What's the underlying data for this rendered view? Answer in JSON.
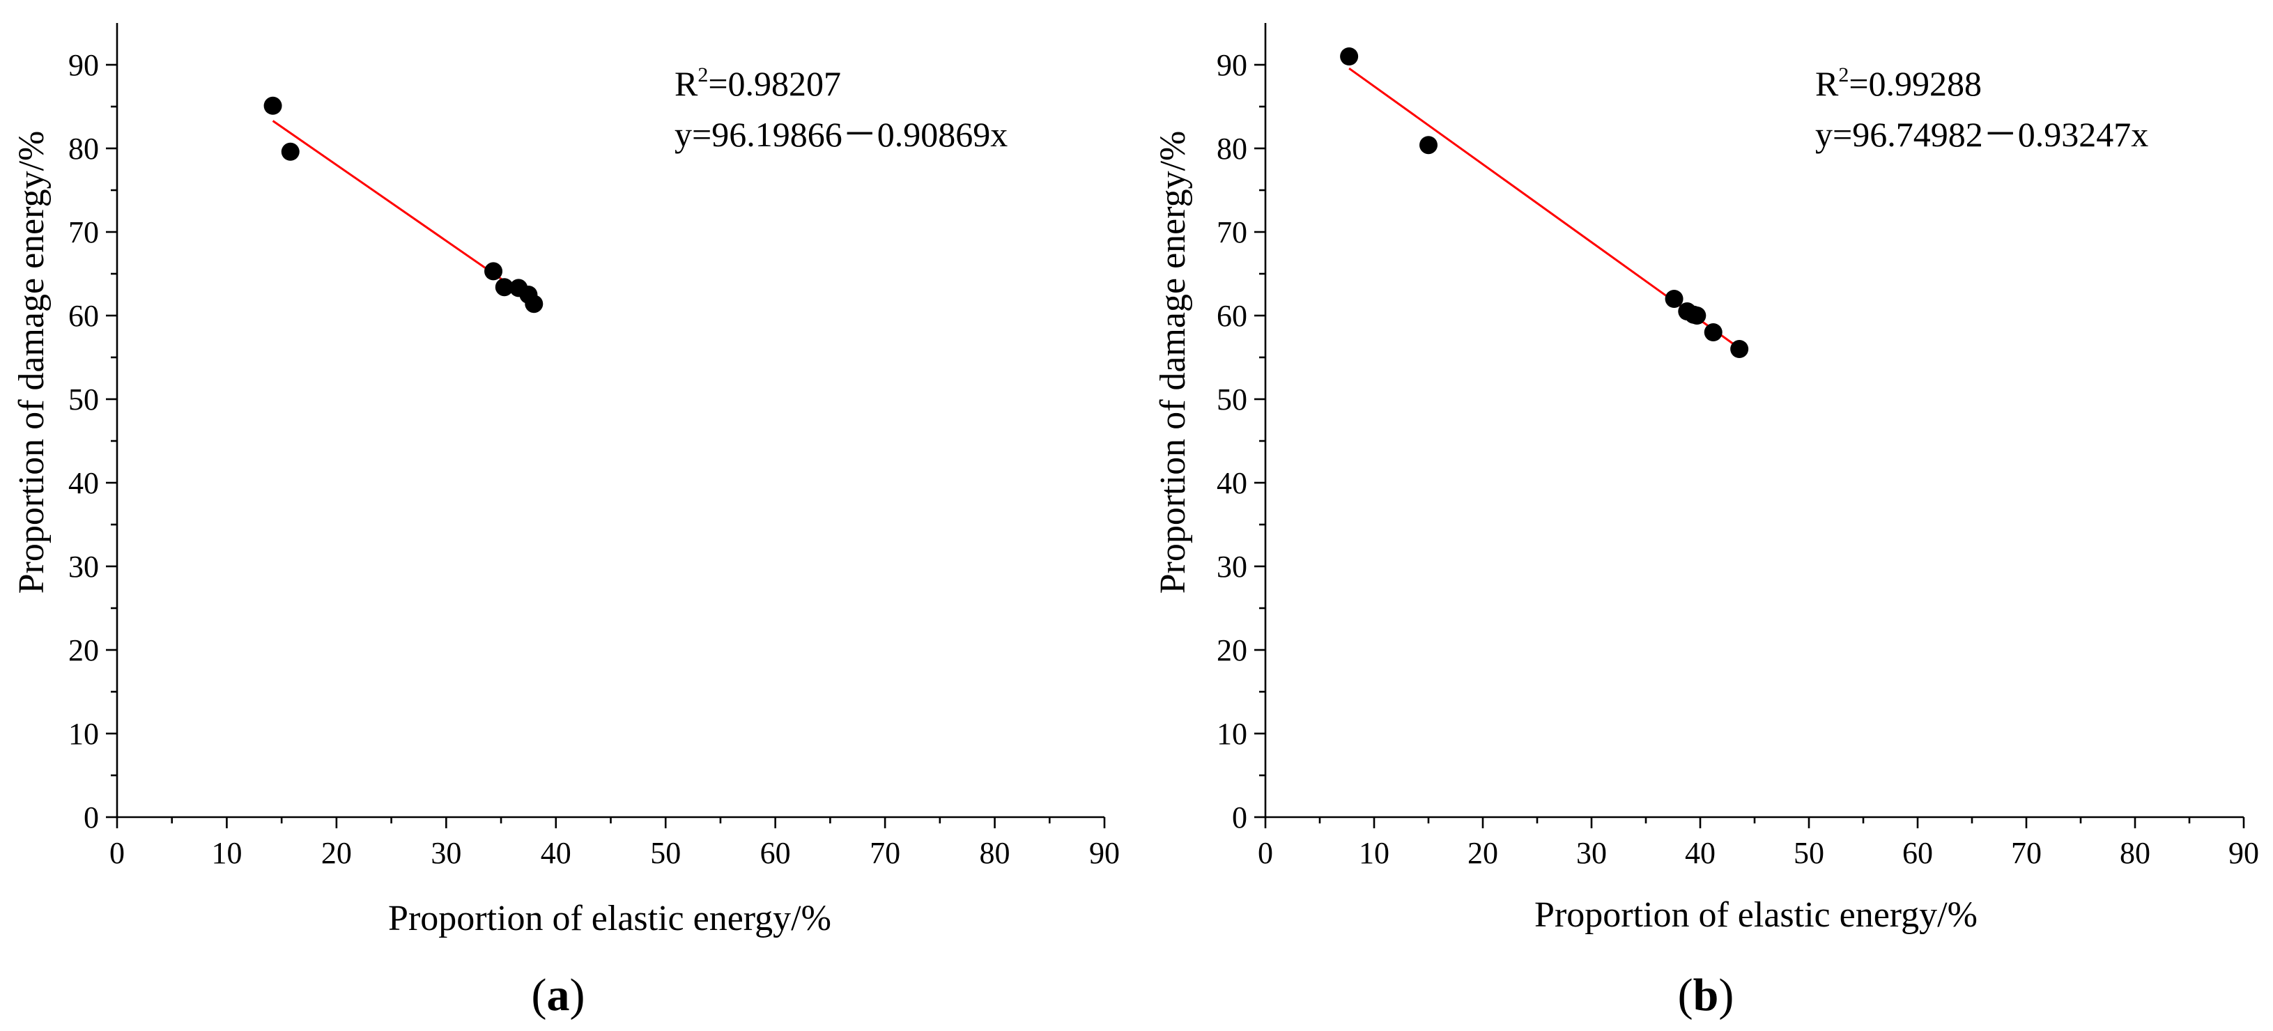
{
  "chart_data": [
    {
      "type": "scatter",
      "panel_label": "a",
      "xlabel": "Proportion of elastic energy/%",
      "ylabel": "Proportion of damage energy/%",
      "xlim": [
        0,
        90
      ],
      "ylim": [
        0,
        95
      ],
      "xticks": [
        0,
        10,
        20,
        30,
        40,
        50,
        60,
        70,
        80,
        90
      ],
      "yticks": [
        0,
        10,
        20,
        30,
        40,
        50,
        60,
        70,
        80,
        90
      ],
      "points": {
        "x": [
          14.2,
          15.8,
          34.3,
          35.3,
          36.6,
          37.5,
          38.0
        ],
        "y": [
          85.1,
          79.6,
          65.3,
          63.4,
          63.3,
          62.5,
          61.4
        ]
      },
      "fit": {
        "slope": -0.90869,
        "intercept": 96.19866,
        "x_range": [
          14.2,
          38.0
        ],
        "color": "#ff0000"
      },
      "r2_label": "R",
      "r2_exp": "2",
      "r2_value": "=0.98207",
      "equation": "y=96.19866－0.90869x"
    },
    {
      "type": "scatter",
      "panel_label": "b",
      "xlabel": "Proportion of elastic energy/%",
      "ylabel": "Proportion of damage energy/%",
      "xlim": [
        0,
        90
      ],
      "ylim": [
        0,
        95
      ],
      "xticks": [
        0,
        10,
        20,
        30,
        40,
        50,
        60,
        70,
        80,
        90
      ],
      "yticks": [
        0,
        10,
        20,
        30,
        40,
        50,
        60,
        70,
        80,
        90
      ],
      "points": {
        "x": [
          7.7,
          15.0,
          37.6,
          38.8,
          39.4,
          39.7,
          41.2,
          43.6
        ],
        "y": [
          91.0,
          80.4,
          62.0,
          60.5,
          60.1,
          60.0,
          58.0,
          56.0
        ]
      },
      "fit": {
        "slope": -0.93247,
        "intercept": 96.74982,
        "x_range": [
          7.7,
          43.6
        ],
        "color": "#ff0000"
      },
      "r2_label": "R",
      "r2_exp": "2",
      "r2_value": "=0.99288",
      "equation": "y=96.74982－0.93247x"
    }
  ]
}
